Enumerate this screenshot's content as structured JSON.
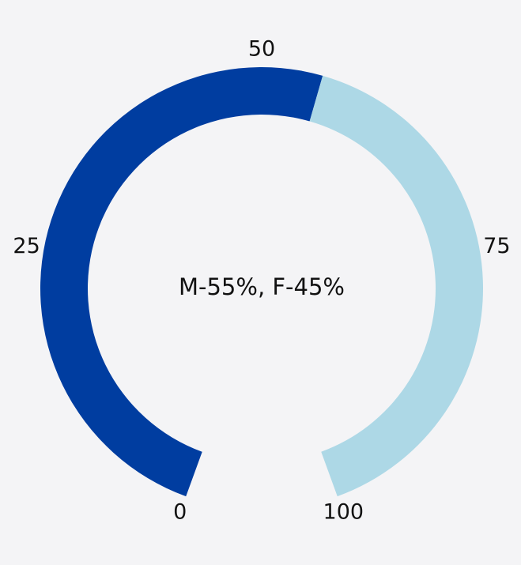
{
  "chart_data": {
    "type": "gauge",
    "center_text": "M-55%, F-45%",
    "values": [
      55,
      45
    ],
    "colors": [
      "#003da0",
      "#add8e6"
    ],
    "ylim": [
      0,
      100
    ],
    "yticks": [
      0,
      25,
      50,
      75,
      100
    ]
  }
}
